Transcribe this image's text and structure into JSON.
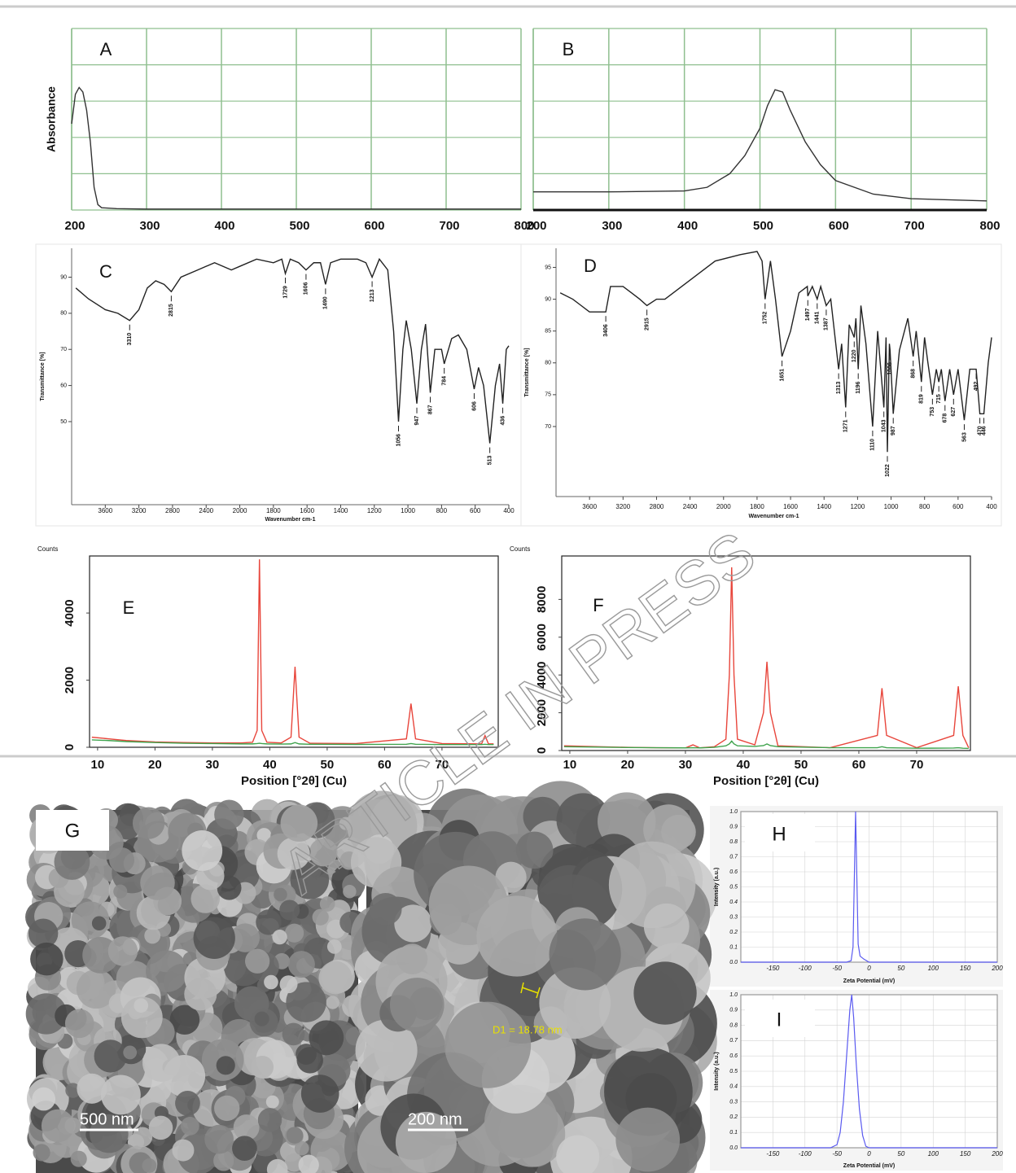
{
  "chart_data": [
    {
      "type": "line",
      "label": "A",
      "ylabel": "Absorbance",
      "x": [
        200,
        205,
        210,
        215,
        220,
        225,
        230,
        235,
        240,
        260,
        300,
        400,
        500,
        600,
        700,
        800
      ],
      "series": [
        {
          "color": "#333333",
          "values": [
            1.9,
            2.55,
            2.7,
            2.6,
            2.2,
            1.5,
            0.5,
            0.12,
            0.05,
            0.03,
            0.02,
            0.02,
            0.02,
            0.02,
            0.02,
            0.02
          ]
        }
      ],
      "xlim": [
        200,
        800
      ],
      "xticks": [
        200,
        300,
        400,
        500,
        600,
        700,
        800
      ],
      "ylim": [
        0,
        4
      ],
      "grid": true,
      "grid_color": "#8fbf8f"
    },
    {
      "type": "line",
      "label": "B",
      "x": [
        200,
        300,
        400,
        430,
        460,
        480,
        500,
        510,
        520,
        530,
        540,
        560,
        580,
        600,
        650,
        700,
        800
      ],
      "series": [
        {
          "color": "#333333",
          "values": [
            0.4,
            0.4,
            0.42,
            0.5,
            0.8,
            1.2,
            1.8,
            2.3,
            2.65,
            2.6,
            2.2,
            1.5,
            1.0,
            0.65,
            0.35,
            0.25,
            0.2
          ]
        }
      ],
      "xlim": [
        200,
        800
      ],
      "xticks": [
        200,
        300,
        400,
        500,
        600,
        700,
        800
      ],
      "ylim": [
        0,
        4
      ],
      "grid": true,
      "grid_color": "#8fbf8f"
    },
    {
      "type": "line",
      "label": "C",
      "xlabel": "Wavenumber cm-1",
      "ylabel": "Transmittance [%]",
      "x_compress_above": 2000,
      "x": [
        3950,
        3800,
        3600,
        3450,
        3310,
        3200,
        3100,
        3000,
        2900,
        2815,
        2700,
        2500,
        2300,
        2100,
        2000,
        1900,
        1800,
        1750,
        1729,
        1700,
        1650,
        1606,
        1560,
        1520,
        1490,
        1460,
        1400,
        1300,
        1250,
        1213,
        1170,
        1120,
        1085,
        1056,
        1030,
        1010,
        980,
        947,
        920,
        895,
        867,
        840,
        800,
        784,
        740,
        700,
        650,
        606,
        580,
        550,
        513,
        480,
        455,
        436,
        415,
        400
      ],
      "series": [
        {
          "color": "#222222",
          "values": [
            87,
            84,
            81,
            80,
            78,
            81,
            87,
            89,
            88,
            86,
            90,
            92,
            94,
            92,
            93,
            95,
            94,
            95,
            91,
            95,
            94,
            92,
            94,
            94,
            88,
            94,
            95,
            95,
            94,
            90,
            95,
            92,
            75,
            50,
            70,
            78,
            70,
            55,
            70,
            77,
            58,
            70,
            70,
            66,
            73,
            74,
            70,
            59,
            65,
            60,
            44,
            60,
            66,
            55,
            70,
            71
          ]
        }
      ],
      "peak_labels": [
        3310,
        2815,
        1729,
        1606,
        1490,
        1213,
        1056,
        947,
        867,
        784,
        606,
        513,
        436
      ],
      "xlim": [
        4000,
        400
      ],
      "xticks": [
        3600,
        3200,
        2800,
        2400,
        2000,
        1800,
        1600,
        1400,
        1200,
        1000,
        800,
        600,
        400
      ],
      "ylim": [
        27,
        98
      ],
      "yticks": [
        50,
        60,
        70,
        80,
        90
      ]
    },
    {
      "type": "line",
      "label": "D",
      "xlabel": "Wavenumber cm-1",
      "ylabel": "Transmittance [%]",
      "x_compress_above": 2000,
      "x": [
        3950,
        3800,
        3700,
        3600,
        3500,
        3406,
        3350,
        3200,
        3100,
        3000,
        2915,
        2800,
        2700,
        2500,
        2300,
        2100,
        1900,
        1800,
        1770,
        1752,
        1720,
        1690,
        1651,
        1600,
        1550,
        1500,
        1497,
        1470,
        1441,
        1420,
        1387,
        1360,
        1313,
        1295,
        1271,
        1250,
        1220,
        1210,
        1196,
        1180,
        1150,
        1110,
        1080,
        1043,
        1030,
        1022,
        1010,
        1006,
        987,
        950,
        900,
        868,
        850,
        819,
        800,
        780,
        753,
        730,
        715,
        700,
        678,
        650,
        627,
        600,
        563,
        530,
        492,
        470,
        446,
        420,
        400
      ],
      "series": [
        {
          "color": "#222222",
          "values": [
            91,
            90,
            89,
            88,
            88,
            88,
            92,
            92,
            91,
            90,
            89,
            90,
            90,
            92,
            94,
            96,
            97,
            97.5,
            96,
            90,
            96,
            90,
            81,
            85,
            91,
            92,
            90.5,
            92,
            90,
            92,
            89,
            90,
            79,
            83,
            73,
            86,
            84,
            87,
            79,
            89,
            83,
            70,
            85,
            73,
            84,
            66,
            83,
            82,
            72,
            82,
            87,
            81,
            85,
            77,
            84,
            80,
            75,
            79,
            77,
            79,
            74,
            79,
            75,
            79,
            71,
            79,
            79,
            72,
            72,
            80,
            84
          ]
        }
      ],
      "peak_labels": [
        3406,
        2915,
        1752,
        1651,
        1497,
        1441,
        1387,
        1313,
        1271,
        1220,
        1196,
        1110,
        1043,
        1006,
        1022,
        987,
        868,
        819,
        753,
        715,
        678,
        627,
        563,
        492,
        470,
        446
      ],
      "xlim": [
        4000,
        400
      ],
      "xticks": [
        3600,
        3200,
        2800,
        2400,
        2000,
        1800,
        1600,
        1400,
        1200,
        1000,
        800,
        600,
        400
      ],
      "ylim": [
        59,
        98
      ],
      "yticks": [
        70,
        75,
        80,
        85,
        90,
        95
      ]
    },
    {
      "type": "line",
      "label": "E",
      "xlabel": "Position [°2θ] (Cu)",
      "ylabel": "Counts",
      "x": [
        9,
        12,
        15,
        20,
        25,
        30,
        35,
        37,
        37.8,
        38.2,
        38.6,
        39.5,
        42,
        43.7,
        44.4,
        45.1,
        47,
        55,
        63.8,
        64.6,
        65.4,
        70,
        76.9,
        77.5,
        78.1,
        79
      ],
      "series": [
        {
          "color": "#e8463c",
          "values": [
            300,
            250,
            200,
            160,
            140,
            130,
            130,
            150,
            500,
            5600,
            500,
            150,
            130,
            300,
            2400,
            300,
            120,
            110,
            250,
            1300,
            250,
            110,
            100,
            350,
            100,
            100
          ]
        },
        {
          "color": "#3fa34d",
          "values": [
            220,
            200,
            170,
            140,
            120,
            110,
            100,
            100,
            110,
            120,
            110,
            100,
            95,
            100,
            140,
            100,
            90,
            85,
            90,
            110,
            90,
            80,
            80,
            90,
            80,
            80
          ]
        }
      ],
      "xlim": [
        8.6,
        79.8
      ],
      "xticks": [
        10,
        20,
        30,
        40,
        50,
        60,
        70
      ],
      "ylim": [
        0,
        5700
      ],
      "yticks": [
        0,
        2000,
        4000
      ]
    },
    {
      "type": "line",
      "label": "F",
      "xlabel": "Position [°2θ] (Cu)",
      "ylabel": "Counts",
      "x": [
        9,
        15,
        20,
        25,
        30,
        31.3,
        32.5,
        35,
        37,
        37.6,
        38,
        38.4,
        39,
        42,
        43.5,
        44.1,
        44.7,
        46,
        55,
        63.2,
        64,
        64.8,
        70,
        76.4,
        77.2,
        78,
        79
      ],
      "series": [
        {
          "color": "#e8463c",
          "values": [
            250,
            200,
            170,
            150,
            140,
            300,
            140,
            200,
            600,
            4000,
            9700,
            4000,
            600,
            300,
            2000,
            4700,
            2000,
            250,
            150,
            800,
            3300,
            800,
            150,
            800,
            3400,
            800,
            150
          ]
        },
        {
          "color": "#3fa34d",
          "values": [
            200,
            180,
            160,
            150,
            140,
            150,
            140,
            170,
            250,
            350,
            500,
            350,
            250,
            220,
            260,
            350,
            260,
            200,
            150,
            150,
            200,
            150,
            120,
            130,
            150,
            120,
            110
          ]
        }
      ],
      "xlim": [
        8.6,
        79.3
      ],
      "xticks": [
        10,
        20,
        30,
        40,
        50,
        60,
        70
      ],
      "ylim": [
        0,
        10300
      ],
      "yticks": [
        0,
        2000,
        4000,
        6000,
        8000
      ]
    },
    {
      "type": "line",
      "label": "H",
      "xlabel": "Zeta Potential (mV)",
      "ylabel": "Intensity (a.u.)",
      "x": [
        -200,
        -35,
        -28,
        -25,
        -23,
        -21,
        -19,
        -17,
        -14,
        -8,
        0,
        200
      ],
      "series": [
        {
          "color": "#5a5af0",
          "values": [
            0,
            0,
            0.01,
            0.1,
            0.55,
            1.0,
            0.55,
            0.12,
            0.04,
            0.02,
            0,
            0
          ]
        }
      ],
      "xlim": [
        -200,
        200
      ],
      "xticks": [
        -150,
        -100,
        -50,
        0,
        50,
        100,
        150,
        200
      ],
      "ylim": [
        0,
        1
      ],
      "yticks": [
        {
          "value": 0,
          "label": "0.0"
        },
        0.1,
        0.2,
        0.3,
        0.4,
        0.5,
        0.6,
        0.7,
        0.8,
        0.9,
        {
          "value": 1,
          "label": "1.0"
        }
      ],
      "grid": true,
      "grid_color": "#d4d4d4"
    },
    {
      "type": "line",
      "label": "I",
      "xlabel": "Zeta Potential (mV)",
      "ylabel": "Intensity (a.u.)",
      "x": [
        -200,
        -60,
        -50,
        -45,
        -40,
        -35,
        -30,
        -27,
        -24,
        -20,
        -15,
        -10,
        -5,
        0,
        200
      ],
      "series": [
        {
          "color": "#5a5af0",
          "values": [
            0,
            0,
            0.02,
            0.1,
            0.3,
            0.6,
            0.9,
            1.0,
            0.85,
            0.55,
            0.25,
            0.08,
            0.01,
            0,
            0
          ]
        }
      ],
      "xlim": [
        -200,
        200
      ],
      "xticks": [
        -150,
        -100,
        -50,
        0,
        50,
        100,
        150,
        200
      ],
      "ylim": [
        0,
        1
      ],
      "yticks": [
        {
          "value": 0,
          "label": "0.0"
        },
        0.1,
        0.2,
        0.3,
        0.4,
        0.5,
        0.6,
        0.7,
        0.8,
        0.9,
        {
          "value": 1,
          "label": "1.0"
        }
      ],
      "grid": true,
      "grid_color": "#d4d4d4"
    }
  ],
  "images": [
    {
      "label": "G",
      "scale_bar": "500 nm"
    },
    {
      "scale_bar": "200 nm",
      "measurement": "D1 = 18.78 nm"
    }
  ],
  "watermark": "ARTICLE IN PRESS"
}
